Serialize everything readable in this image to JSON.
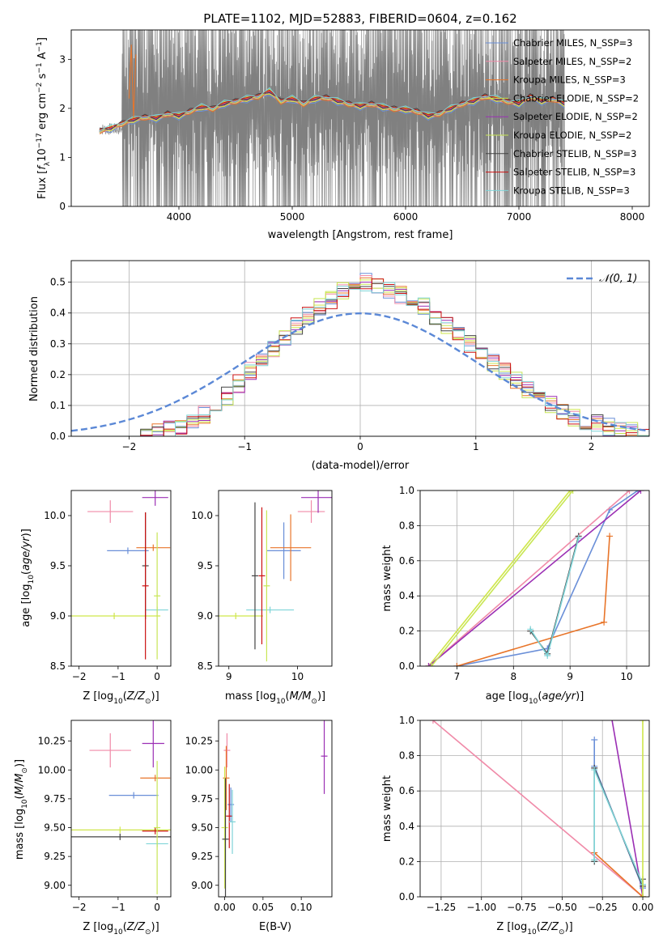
{
  "colors": {
    "Chabrier MILES": "#6a8fd8",
    "Salpeter MILES": "#f08aa8",
    "Kroupa MILES": "#e8752a",
    "Chabrier ELODIE": "#cfe64a",
    "Salpeter ELODIE": "#9b2fb4",
    "Kroupa ELODIE": "#c8e655",
    "Chabrier STELIB": "#444444",
    "Salpeter STELIB": "#cc1111",
    "Kroupa STELIB": "#7fd4d8",
    "observed": "#808080",
    "normal": "#5b88d6"
  },
  "chart_data": [
    {
      "type": "line",
      "title": "PLATE=1102, MJD=52883, FIBERID=0604, z=0.162",
      "xlabel": "wavelength [Angstrom, rest frame]",
      "ylabel": "Flux [f_λ 10^-17 erg cm^-2 s^-1 A^-1]",
      "xlim": [
        3050,
        8150
      ],
      "ylim": [
        0,
        3.6
      ],
      "xticks": [
        "4000",
        "5000",
        "6000",
        "7000",
        "8000"
      ],
      "yticks": [
        "0",
        "1",
        "2",
        "3"
      ],
      "legend": [
        "Chabrier MILES, N_SSP=3",
        "Salpeter MILES, N_SSP=2",
        "Kroupa MILES, N_SSP=3",
        "Chabrier ELODIE, N_SSP=2",
        "Salpeter ELODIE, N_SSP=2",
        "Kroupa ELODIE, N_SSP=2",
        "Chabrier STELIB, N_SSP=3",
        "Salpeter STELIB, N_SSP=3",
        "Kroupa STELIB, N_SSP=3"
      ],
      "legend_placement": "upper right",
      "model_curve": [
        [
          3300,
          1.5
        ],
        [
          3400,
          1.55
        ],
        [
          3500,
          1.65
        ],
        [
          3600,
          1.72
        ],
        [
          3700,
          1.78
        ],
        [
          3800,
          1.75
        ],
        [
          3900,
          1.85
        ],
        [
          4000,
          1.8
        ],
        [
          4100,
          1.9
        ],
        [
          4200,
          1.98
        ],
        [
          4300,
          1.95
        ],
        [
          4400,
          2.05
        ],
        [
          4500,
          2.1
        ],
        [
          4600,
          2.15
        ],
        [
          4700,
          2.2
        ],
        [
          4800,
          2.3
        ],
        [
          4900,
          2.1
        ],
        [
          5000,
          2.15
        ],
        [
          5100,
          2.05
        ],
        [
          5200,
          2.15
        ],
        [
          5300,
          2.18
        ],
        [
          5400,
          2.1
        ],
        [
          5500,
          2.05
        ],
        [
          5600,
          2.0
        ],
        [
          5700,
          2.05
        ],
        [
          5800,
          1.98
        ],
        [
          5900,
          1.95
        ],
        [
          6000,
          1.93
        ],
        [
          6100,
          1.9
        ],
        [
          6200,
          1.8
        ],
        [
          6300,
          1.85
        ],
        [
          6400,
          1.95
        ],
        [
          6500,
          2.05
        ],
        [
          6600,
          2.1
        ],
        [
          6700,
          2.2
        ],
        [
          6800,
          2.15
        ],
        [
          6900,
          2.1
        ],
        [
          7000,
          2.05
        ],
        [
          7100,
          2.2
        ],
        [
          7200,
          2.1
        ],
        [
          7300,
          2.15
        ],
        [
          7400,
          2.05
        ]
      ],
      "observed_range": [
        3500,
        7400
      ],
      "grid": false
    },
    {
      "type": "histogram",
      "xlabel": "(data-model)/error",
      "ylabel": "Normed distribution",
      "xlim": [
        -2.5,
        2.5
      ],
      "ylim": [
        0,
        0.57
      ],
      "xticks": [
        "−2",
        "−1",
        "0",
        "1",
        "2"
      ],
      "yticks": [
        "0.0",
        "0.1",
        "0.2",
        "0.3",
        "0.4",
        "0.5"
      ],
      "legend": [
        "𝒩(0, 1)"
      ],
      "legend_placement": "upper right",
      "grid": true,
      "bin_width": 0.1,
      "bin_start": -2.5,
      "base_heights": [
        0.0,
        0.0,
        0.0,
        0.0,
        0.0,
        0.0,
        0.005,
        0.01,
        0.02,
        0.03,
        0.05,
        0.07,
        0.1,
        0.13,
        0.17,
        0.21,
        0.25,
        0.28,
        0.32,
        0.36,
        0.39,
        0.42,
        0.44,
        0.47,
        0.49,
        0.5,
        0.49,
        0.47,
        0.46,
        0.44,
        0.42,
        0.39,
        0.36,
        0.33,
        0.3,
        0.27,
        0.24,
        0.21,
        0.18,
        0.15,
        0.12,
        0.1,
        0.08,
        0.06,
        0.05,
        0.04,
        0.03,
        0.02,
        0.015,
        0.01
      ],
      "normal_curve": {
        "mean": 0,
        "std": 1
      }
    },
    {
      "type": "scatter",
      "xlabel": "Z [log10(Z/Z⊙)]",
      "ylabel": "age  [log10(age/yr)]",
      "xlim": [
        -2.2,
        0.35
      ],
      "ylim": [
        8.5,
        10.25
      ],
      "xticks": [
        "−2",
        "−1",
        "0"
      ],
      "yticks": [
        "8.5",
        "9.0",
        "9.5",
        "10.0"
      ],
      "points": [
        {
          "s": "Salpeter MILES",
          "x": -1.2,
          "y": 10.04,
          "xe": 0.5,
          "ye": 0.08
        },
        {
          "s": "Salpeter ELODIE",
          "x": -0.05,
          "y": 10.18,
          "xe": 0.25,
          "ye": 0.05
        },
        {
          "s": "Chabrier MILES",
          "x": -0.75,
          "y": 9.65,
          "xe": 0.45,
          "ye": 0.0
        },
        {
          "s": "Kroupa MILES",
          "x": -0.1,
          "y": 9.68,
          "xe": 0.35,
          "ye": 0.0
        },
        {
          "s": "Chabrier ELODIE",
          "x": -1.1,
          "y": 9.0,
          "xe": 1.1,
          "ye": 0.0
        },
        {
          "s": "Kroupa STELIB",
          "x": 0.0,
          "y": 9.06,
          "xe": 0.2,
          "ye": 0.0
        },
        {
          "s": "Chabrier STELIB",
          "x": -0.3,
          "y": 9.5,
          "xe": 0.0,
          "ye": 0.5
        },
        {
          "s": "Salpeter STELIB",
          "x": -0.3,
          "y": 9.3,
          "xe": 0.0,
          "ye": 0.7
        },
        {
          "s": "Kroupa ELODIE",
          "x": 0.0,
          "y": 9.2,
          "xe": 0.0,
          "ye": 0.6
        }
      ]
    },
    {
      "type": "scatter",
      "xlabel": "mass [log10(M/M⊙)]",
      "ylabel": "",
      "xlim": [
        8.85,
        10.5
      ],
      "ylim": [
        8.5,
        10.25
      ],
      "xticks": [
        "9",
        "10"
      ],
      "yticks": [
        "8.5",
        "9.0",
        "9.5",
        "10.0"
      ],
      "points": [
        {
          "s": "Salpeter MILES",
          "x": 10.2,
          "y": 10.04,
          "xe": 0.15,
          "ye": 0.08
        },
        {
          "s": "Salpeter ELODIE",
          "x": 10.3,
          "y": 10.18,
          "xe": 0.2,
          "ye": 0.12
        },
        {
          "s": "Chabrier MILES",
          "x": 9.8,
          "y": 9.65,
          "xe": 0.2,
          "ye": 0.25
        },
        {
          "s": "Kroupa MILES",
          "x": 9.9,
          "y": 9.68,
          "xe": 0.25,
          "ye": 0.3
        },
        {
          "s": "Chabrier ELODIE",
          "x": 9.1,
          "y": 9.0,
          "xe": 0.35,
          "ye": 0.0
        },
        {
          "s": "Kroupa STELIB",
          "x": 9.6,
          "y": 9.06,
          "xe": 0.3,
          "ye": 0.0
        },
        {
          "s": "Chabrier STELIB",
          "x": 9.38,
          "y": 9.4,
          "xe": 0.0,
          "ye": 0.7
        },
        {
          "s": "Salpeter STELIB",
          "x": 9.48,
          "y": 9.4,
          "xe": 0.0,
          "ye": 0.65
        },
        {
          "s": "Kroupa ELODIE",
          "x": 9.55,
          "y": 9.3,
          "xe": 0.0,
          "ye": 0.72
        }
      ]
    },
    {
      "type": "line",
      "xlabel": "age  [log10(age/yr)]",
      "ylabel": "mass weight",
      "xlim": [
        6.35,
        10.4
      ],
      "ylim": [
        0,
        1.0
      ],
      "xticks": [
        "7",
        "8",
        "9",
        "10"
      ],
      "yticks": [
        "0.0",
        "0.2",
        "0.4",
        "0.6",
        "0.8",
        "1.0"
      ],
      "grid": true,
      "series": [
        {
          "s": "Chabrier MILES",
          "x": [
            7.0,
            8.6,
            9.7,
            10.2
          ],
          "y": [
            0.0,
            0.1,
            0.89,
            1.0
          ]
        },
        {
          "s": "Salpeter MILES",
          "x": [
            6.5,
            10.05
          ],
          "y": [
            0.0,
            1.0
          ]
        },
        {
          "s": "Kroupa MILES",
          "x": [
            7.0,
            9.6,
            9.7
          ],
          "y": [
            0.0,
            0.25,
            0.74
          ]
        },
        {
          "s": "Chabrier ELODIE",
          "x": [
            6.5,
            9.0
          ],
          "y": [
            0.0,
            1.0
          ]
        },
        {
          "s": "Salpeter ELODIE",
          "x": [
            6.5,
            10.25
          ],
          "y": [
            0.0,
            1.0
          ]
        },
        {
          "s": "Kroupa ELODIE",
          "x": [
            6.55,
            9.05
          ],
          "y": [
            0.0,
            1.0
          ]
        },
        {
          "s": "Chabrier STELIB",
          "x": [
            8.3,
            8.6,
            9.15
          ],
          "y": [
            0.2,
            0.07,
            0.74
          ]
        },
        {
          "s": "Kroupa STELIB",
          "x": [
            8.3,
            8.6,
            9.15
          ],
          "y": [
            0.21,
            0.06,
            0.73
          ]
        }
      ]
    },
    {
      "type": "scatter",
      "xlabel": "Z [log10(Z/Z⊙)]",
      "ylabel": "mass [log10(M/M⊙)]",
      "xlim": [
        -2.2,
        0.35
      ],
      "ylim": [
        8.9,
        10.43
      ],
      "xticks": [
        "−2",
        "−1",
        "0"
      ],
      "yticks": [
        "9.00",
        "9.25",
        "9.50",
        "9.75",
        "10.00",
        "10.25"
      ],
      "points": [
        {
          "s": "Salpeter MILES",
          "x": -1.2,
          "y": 10.17,
          "xe": 0.45,
          "ye": 0.12
        },
        {
          "s": "Salpeter ELODIE",
          "x": -0.1,
          "y": 10.23,
          "xe": 0.2,
          "ye": 0.18
        },
        {
          "s": "Kroupa MILES",
          "x": -0.05,
          "y": 9.93,
          "xe": 0.3,
          "ye": 0.0
        },
        {
          "s": "Chabrier MILES",
          "x": -0.6,
          "y": 9.78,
          "xe": 0.55,
          "ye": 0.0
        },
        {
          "s": "Chabrier ELODIE",
          "x": -0.95,
          "y": 9.48,
          "xe": 1.25,
          "ye": 0.0
        },
        {
          "s": "Salpeter STELIB",
          "x": -0.05,
          "y": 9.47,
          "xe": 0.25,
          "ye": 0.0
        },
        {
          "s": "Chabrier STELIB",
          "x": -0.95,
          "y": 9.42,
          "xe": 1.25,
          "ye": 0.0
        },
        {
          "s": "Kroupa STELIB",
          "x": 0.0,
          "y": 9.36,
          "xe": 0.2,
          "ye": 0.0
        },
        {
          "s": "Kroupa ELODIE",
          "x": 0.0,
          "y": 9.5,
          "xe": 0.0,
          "ye": 0.55
        }
      ]
    },
    {
      "type": "scatter",
      "xlabel": "E(B-V)",
      "ylabel": "",
      "xlim": [
        -0.008,
        0.14
      ],
      "ylim": [
        8.9,
        10.43
      ],
      "xticks": [
        "0.00",
        "0.05",
        "0.10"
      ],
      "yticks": [
        "9.00",
        "9.25",
        "9.50",
        "9.75",
        "10.00",
        "10.25"
      ],
      "points": [
        {
          "s": "Salpeter MILES",
          "x": 0.003,
          "y": 10.17,
          "xe": 0.0,
          "ye": 0.12
        },
        {
          "s": "Salpeter ELODIE",
          "x": 0.13,
          "y": 10.12,
          "xe": 0.0,
          "ye": 0.3
        },
        {
          "s": "Kroupa MILES",
          "x": 0.002,
          "y": 9.93,
          "xe": 0.0,
          "ye": 0.25
        },
        {
          "s": "Chabrier MILES",
          "x": 0.008,
          "y": 9.7,
          "xe": 0.0,
          "ye": 0.12
        },
        {
          "s": "Chabrier ELODIE",
          "x": 0.0,
          "y": 9.5,
          "xe": 0.0,
          "ye": 0.5
        },
        {
          "s": "Salpeter STELIB",
          "x": 0.006,
          "y": 9.6,
          "xe": 0.0,
          "ye": 0.25
        },
        {
          "s": "Kroupa STELIB",
          "x": 0.01,
          "y": 9.55,
          "xe": 0.0,
          "ye": 0.25
        },
        {
          "s": "Chabrier STELIB",
          "x": 0.001,
          "y": 9.4,
          "xe": 0.0,
          "ye": 0.5
        }
      ]
    },
    {
      "type": "line",
      "xlabel": "Z [log10(Z/Z⊙)]",
      "ylabel": "mass weight",
      "xlim": [
        -1.38,
        0.04
      ],
      "ylim": [
        0,
        1.0
      ],
      "xticks": [
        "−1.25",
        "−1.00",
        "−0.75",
        "−0.50",
        "−0.25",
        "0.00"
      ],
      "yticks": [
        "0.0",
        "0.2",
        "0.4",
        "0.6",
        "0.8",
        "1.0"
      ],
      "grid": true,
      "series": [
        {
          "s": "Salpeter MILES",
          "x": [
            -1.3,
            0.0
          ],
          "y": [
            1.0,
            0.0
          ]
        },
        {
          "s": "Salpeter ELODIE",
          "x": [
            -0.2,
            0.0
          ],
          "y": [
            1.05,
            0.0
          ]
        },
        {
          "s": "Chabrier MILES",
          "x": [
            -0.3,
            -0.3,
            0.0
          ],
          "y": [
            0.89,
            0.74,
            0.05
          ]
        },
        {
          "s": "Kroupa MILES",
          "x": [
            -0.3,
            0.0
          ],
          "y": [
            0.25,
            0.0
          ]
        },
        {
          "s": "Chabrier STELIB",
          "x": [
            -0.3,
            -0.3,
            0.0,
            0.0
          ],
          "y": [
            0.2,
            0.73,
            0.06,
            0.1
          ]
        },
        {
          "s": "Kroupa STELIB",
          "x": [
            -0.3,
            -0.3,
            0.0
          ],
          "y": [
            0.21,
            0.72,
            0.07
          ]
        },
        {
          "s": "Chabrier ELODIE",
          "x": [
            0.0,
            0.0
          ],
          "y": [
            0.0,
            1.0
          ]
        }
      ]
    }
  ]
}
